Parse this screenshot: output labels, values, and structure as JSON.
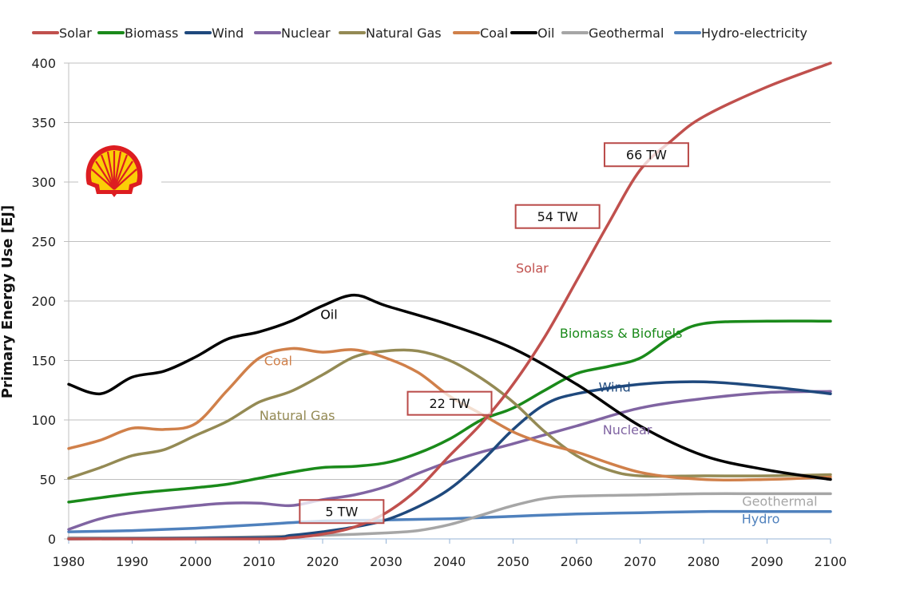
{
  "chart_data": {
    "type": "line",
    "title": "",
    "xlabel": "",
    "ylabel": "Primary Energy Use [EJ]",
    "xlim": [
      1980,
      2100
    ],
    "ylim": [
      0,
      400
    ],
    "xticks": [
      1980,
      1990,
      2000,
      2010,
      2020,
      2030,
      2040,
      2050,
      2060,
      2070,
      2080,
      2090,
      2100
    ],
    "yticks": [
      0,
      50,
      100,
      150,
      200,
      250,
      300,
      350,
      400
    ],
    "grid": "horizontal",
    "legend_position": "top",
    "series": [
      {
        "name": "Solar",
        "color": "#c0504d",
        "x": [
          1980,
          2010,
          2015,
          2020,
          2025,
          2030,
          2035,
          2040,
          2045,
          2050,
          2055,
          2060,
          2065,
          2070,
          2075,
          2080,
          2090,
          2100
        ],
        "values": [
          0,
          0,
          1,
          4,
          10,
          22,
          42,
          70,
          97,
          130,
          170,
          217,
          265,
          310,
          335,
          355,
          380,
          400
        ]
      },
      {
        "name": "Biomass",
        "color": "#1a8a1a",
        "x": [
          1980,
          1990,
          2000,
          2005,
          2010,
          2015,
          2020,
          2025,
          2030,
          2035,
          2040,
          2045,
          2050,
          2055,
          2060,
          2065,
          2070,
          2075,
          2080,
          2090,
          2100
        ],
        "values": [
          31,
          38,
          43,
          46,
          51,
          56,
          60,
          61,
          64,
          72,
          84,
          100,
          110,
          125,
          139,
          145,
          152,
          170,
          181,
          183,
          183
        ]
      },
      {
        "name": "Wind",
        "color": "#1f497d",
        "x": [
          1980,
          2010,
          2015,
          2020,
          2025,
          2030,
          2035,
          2040,
          2045,
          2050,
          2055,
          2060,
          2070,
          2080,
          2090,
          2100
        ],
        "values": [
          0,
          1,
          3,
          6,
          10,
          16,
          27,
          42,
          65,
          92,
          113,
          122,
          130,
          132,
          128,
          122
        ]
      },
      {
        "name": "Nuclear",
        "color": "#8064a2",
        "x": [
          1980,
          1985,
          1990,
          2000,
          2005,
          2010,
          2015,
          2020,
          2025,
          2030,
          2035,
          2040,
          2045,
          2050,
          2060,
          2070,
          2080,
          2090,
          2100
        ],
        "values": [
          8,
          17,
          22,
          28,
          30,
          30,
          28,
          33,
          37,
          44,
          55,
          65,
          73,
          80,
          95,
          110,
          118,
          123,
          124
        ]
      },
      {
        "name": "Natural Gas",
        "color": "#948a54",
        "x": [
          1980,
          1985,
          1990,
          1995,
          2000,
          2005,
          2010,
          2015,
          2020,
          2025,
          2030,
          2035,
          2040,
          2045,
          2050,
          2055,
          2060,
          2065,
          2070,
          2080,
          2090,
          2100
        ],
        "values": [
          51,
          60,
          70,
          75,
          87,
          99,
          115,
          124,
          138,
          153,
          158,
          158,
          150,
          135,
          115,
          90,
          70,
          58,
          53,
          53,
          53,
          54
        ]
      },
      {
        "name": "Coal",
        "color": "#d0804a",
        "x": [
          1980,
          1985,
          1990,
          1995,
          2000,
          2005,
          2010,
          2015,
          2020,
          2025,
          2030,
          2035,
          2040,
          2045,
          2050,
          2055,
          2060,
          2070,
          2080,
          2090,
          2100
        ],
        "values": [
          76,
          83,
          93,
          92,
          97,
          125,
          152,
          160,
          157,
          159,
          152,
          140,
          120,
          105,
          90,
          80,
          73,
          56,
          50,
          50,
          52
        ]
      },
      {
        "name": "Oil",
        "color": "#000000",
        "x": [
          1980,
          1985,
          1990,
          1995,
          2000,
          2005,
          2010,
          2015,
          2020,
          2025,
          2030,
          2040,
          2050,
          2060,
          2070,
          2080,
          2090,
          2100
        ],
        "values": [
          130,
          122,
          136,
          141,
          153,
          168,
          174,
          183,
          196,
          205,
          196,
          180,
          160,
          130,
          95,
          70,
          58,
          50
        ]
      },
      {
        "name": "Geothermal",
        "color": "#a6a6a6",
        "x": [
          1980,
          2000,
          2020,
          2030,
          2035,
          2040,
          2045,
          2050,
          2055,
          2060,
          2070,
          2080,
          2090,
          2100
        ],
        "values": [
          1,
          1,
          3,
          5,
          7,
          12,
          20,
          28,
          34,
          36,
          37,
          38,
          38,
          38
        ]
      },
      {
        "name": "Hydro-electricity",
        "color": "#4f81bd",
        "x": [
          1980,
          1990,
          2000,
          2010,
          2020,
          2030,
          2040,
          2050,
          2060,
          2070,
          2080,
          2090,
          2100
        ],
        "values": [
          6,
          7,
          9,
          12,
          15,
          16,
          17,
          19,
          21,
          22,
          23,
          23,
          23
        ]
      }
    ],
    "annotations": [
      {
        "text": "Solar",
        "x": 2053,
        "y": 228,
        "color": "#c0504d"
      },
      {
        "text": "Oil",
        "x": 2021,
        "y": 189,
        "color": "#000000"
      },
      {
        "text": "Coal",
        "x": 2013,
        "y": 150,
        "color": "#d0804a"
      },
      {
        "text": "Natural Gas",
        "x": 2016,
        "y": 104,
        "color": "#948a54"
      },
      {
        "text": "Biomass & Biofuels",
        "x": 2067,
        "y": 173,
        "color": "#1a8a1a"
      },
      {
        "text": "Wind",
        "x": 2066,
        "y": 128,
        "color": "#1f497d"
      },
      {
        "text": "Nuclear",
        "x": 2068,
        "y": 92,
        "color": "#8064a2"
      },
      {
        "text": "Geothermal",
        "x": 2092,
        "y": 32,
        "color": "#a6a6a6"
      },
      {
        "text": "Hydro",
        "x": 2089,
        "y": 17,
        "color": "#4f81bd"
      }
    ],
    "boxed_labels": [
      {
        "text": "5 TW",
        "x": 2023,
        "y": 23
      },
      {
        "text": "22 TW",
        "x": 2040,
        "y": 114
      },
      {
        "text": "54 TW",
        "x": 2057,
        "y": 271
      },
      {
        "text": "66 TW",
        "x": 2071,
        "y": 323
      }
    ],
    "logo": "shell-logo"
  }
}
